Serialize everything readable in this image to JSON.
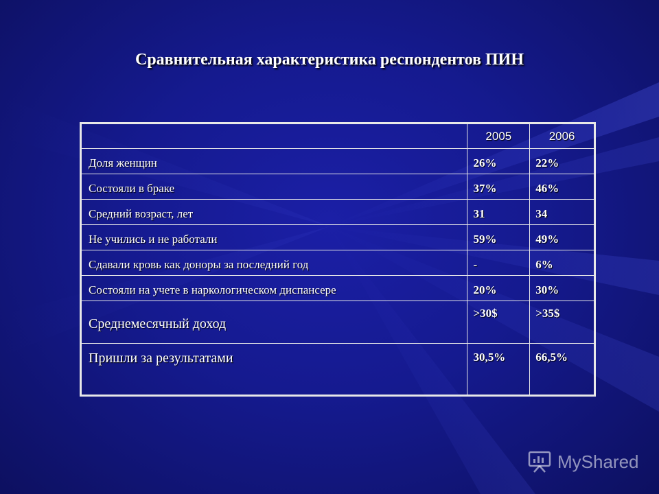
{
  "title": "Сравнительная характеристика респондентов ПИН",
  "table": {
    "header": [
      "",
      "2005",
      "2006"
    ],
    "rows": [
      {
        "label": "Доля женщин",
        "v2005": "26%",
        "v2006": "22%"
      },
      {
        "label": "Состояли в браке",
        "v2005": "37%",
        "v2006": "46%"
      },
      {
        "label": "Средний возраст, лет",
        "v2005": "31",
        "v2006": "34"
      },
      {
        "label": "Не учились и не работали",
        "v2005": "59%",
        "v2006": "49%"
      },
      {
        "label": "Сдавали кровь как доноры за последний год",
        "v2005": "-",
        "v2006": "6%"
      },
      {
        "label": "Состояли на учете в наркологическом диспансере",
        "v2005": "20%",
        "v2006": "30%"
      },
      {
        "label": "Среднемесячный доход",
        "v2005": ">30$",
        "v2006": ">35$"
      },
      {
        "label": "Пришли за результатами",
        "v2005": "30,5%",
        "v2006": "66,5%"
      }
    ]
  },
  "watermark": {
    "text": "MyShared",
    "icon": "presentation-board-icon"
  }
}
